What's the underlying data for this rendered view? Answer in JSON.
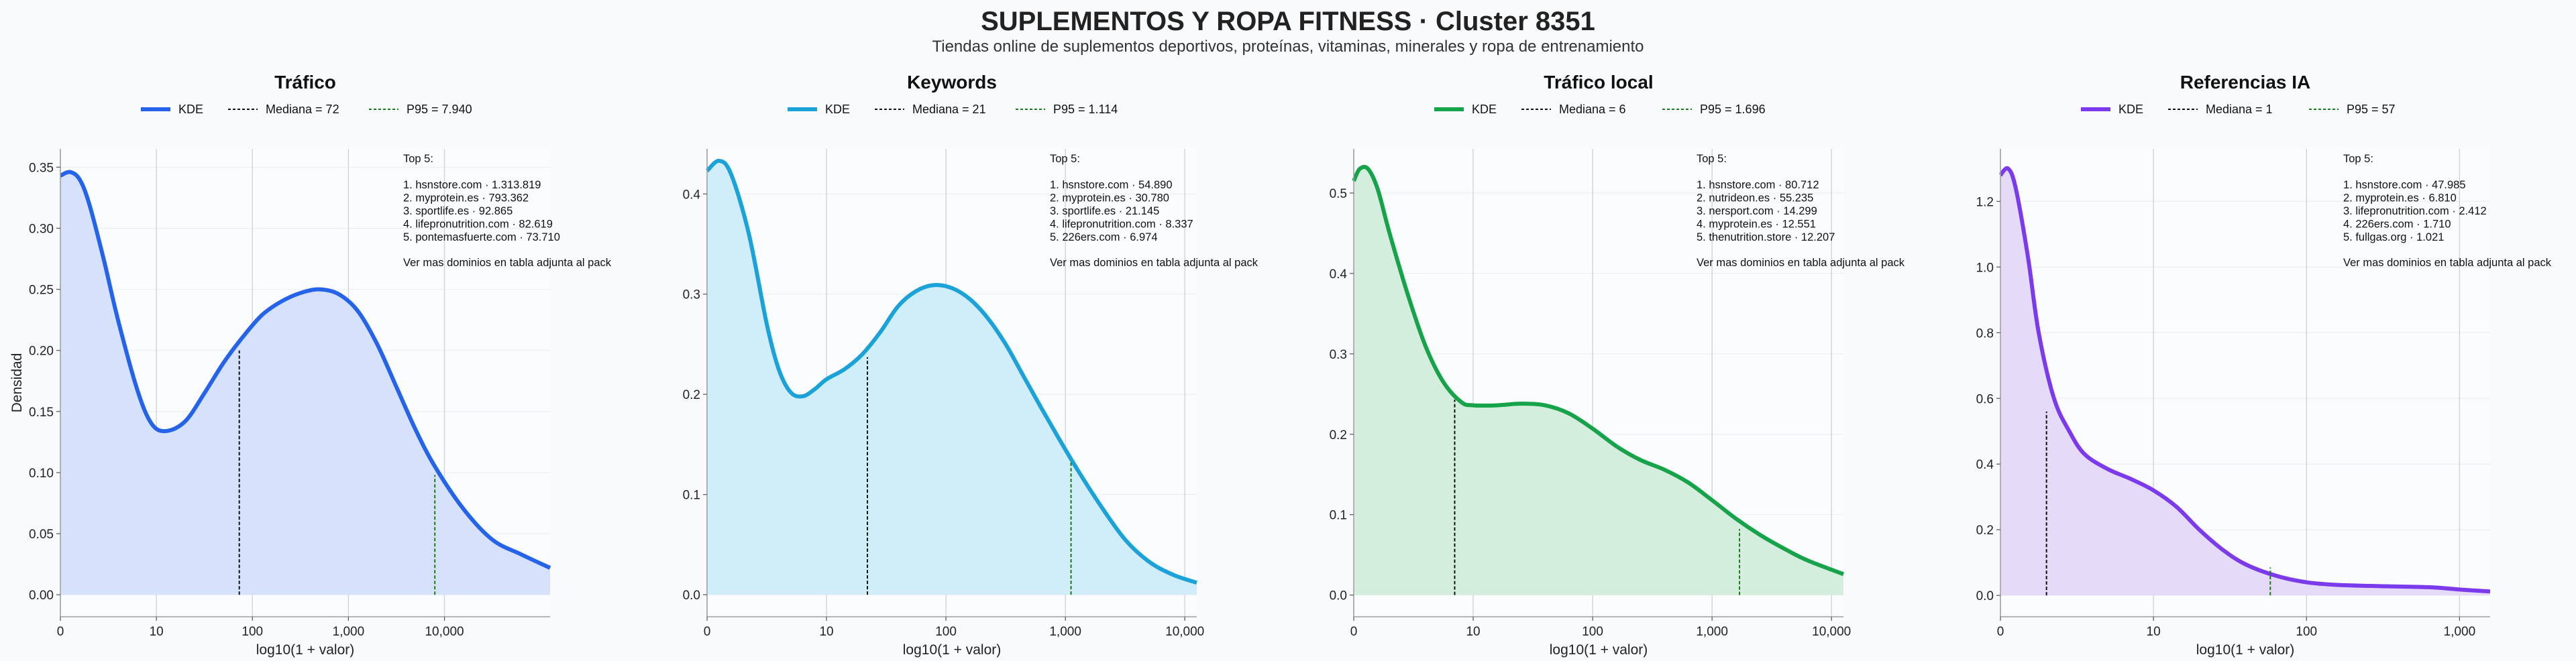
{
  "title": "SUPLEMENTOS Y ROPA FITNESS · Cluster 8351",
  "subtitle": "Tiendas online de suplementos deportivos, proteínas, vitaminas, minerales y ropa de entrenamiento",
  "chart_data": [
    {
      "type": "area",
      "title": "Tráfico",
      "color": "#2563eb",
      "fill": "#d6e2fb",
      "xlabel": "log10(1 + valor)",
      "ylabel": "Densidad",
      "x_scale": "log10(1+x)",
      "xlim_log": [
        0,
        5.1
      ],
      "ylim": [
        -0.018,
        0.365
      ],
      "yticks": [
        0,
        0.05,
        0.1,
        0.15,
        0.2,
        0.25,
        0.3,
        0.35
      ],
      "ytick_labels": [
        "0.00",
        "0.05",
        "0.10",
        "0.15",
        "0.20",
        "0.25",
        "0.30",
        "0.35"
      ],
      "xticks_log": [
        0,
        1,
        2,
        3,
        4
      ],
      "xtick_labels": [
        "0",
        "10",
        "100",
        "1,000",
        "10,000"
      ],
      "kde_x_log": [
        0,
        0.1,
        0.2,
        0.3,
        0.45,
        0.6,
        0.8,
        0.95,
        1.1,
        1.3,
        1.5,
        1.7,
        1.9,
        2.1,
        2.3,
        2.5,
        2.7,
        2.9,
        3.1,
        3.3,
        3.5,
        3.7,
        3.9,
        4.2,
        4.5,
        4.8,
        5.1
      ],
      "kde_y": [
        0.343,
        0.346,
        0.34,
        0.32,
        0.275,
        0.225,
        0.168,
        0.14,
        0.134,
        0.142,
        0.165,
        0.19,
        0.211,
        0.229,
        0.24,
        0.247,
        0.25,
        0.246,
        0.232,
        0.205,
        0.17,
        0.135,
        0.105,
        0.07,
        0.045,
        0.033,
        0.022
      ],
      "median_label": "Mediana = 72",
      "median_value": 72,
      "median_density": 0.2,
      "p95_label": "P95 = 7.940",
      "p95_value": 7940,
      "p95_density": 0.098,
      "legend": {
        "kde": "KDE"
      },
      "top_title": "Top 5:",
      "top": [
        "1. hsnstore.com · 1.313.819",
        "2. myprotein.es · 793.362",
        "3. sportlife.es · 92.865",
        "4. lifepronutrition.com · 82.619",
        "5. pontemasfuerte.com · 73.710"
      ],
      "footnote": "Ver mas dominios en tabla adjunta al pack"
    },
    {
      "type": "area",
      "title": "Keywords",
      "color": "#1ba2d8",
      "fill": "#d0eefa",
      "xlabel": "log10(1 + valor)",
      "ylabel": "",
      "x_scale": "log10(1+x)",
      "xlim_log": [
        0,
        4.1
      ],
      "ylim": [
        -0.022,
        0.445
      ],
      "yticks": [
        0,
        0.1,
        0.2,
        0.3,
        0.4
      ],
      "ytick_labels": [
        "0.0",
        "0.1",
        "0.2",
        "0.3",
        "0.4"
      ],
      "xticks_log": [
        0,
        1,
        2,
        3,
        4
      ],
      "xtick_labels": [
        "0",
        "10",
        "100",
        "1,000",
        "10,000"
      ],
      "kde_x_log": [
        0,
        0.1,
        0.2,
        0.35,
        0.5,
        0.6,
        0.7,
        0.8,
        0.9,
        1.0,
        1.15,
        1.3,
        1.45,
        1.6,
        1.75,
        1.9,
        2.05,
        2.2,
        2.35,
        2.5,
        2.65,
        2.8,
        2.95,
        3.1,
        3.3,
        3.5,
        3.7,
        3.9,
        4.1
      ],
      "kde_y": [
        0.423,
        0.433,
        0.42,
        0.36,
        0.27,
        0.225,
        0.202,
        0.198,
        0.205,
        0.215,
        0.225,
        0.24,
        0.262,
        0.288,
        0.303,
        0.309,
        0.306,
        0.295,
        0.276,
        0.25,
        0.218,
        0.186,
        0.155,
        0.125,
        0.088,
        0.055,
        0.033,
        0.02,
        0.012
      ],
      "median_label": "Mediana = 21",
      "median_value": 21,
      "median_density": 0.237,
      "p95_label": "P95 = 1.114",
      "p95_value": 1114,
      "p95_density": 0.132,
      "legend": {
        "kde": "KDE"
      },
      "top_title": "Top 5:",
      "top": [
        "1. hsnstore.com · 54.890",
        "2. myprotein.es · 30.780",
        "3. sportlife.es · 21.145",
        "4. lifepronutrition.com · 8.337",
        "5. 226ers.com · 6.974"
      ],
      "footnote": "Ver mas dominios en tabla adjunta al pack"
    },
    {
      "type": "area",
      "title": "Tráfico local",
      "color": "#16a34a",
      "fill": "#d3eedd",
      "xlabel": "log10(1 + valor)",
      "ylabel": "",
      "x_scale": "log10(1+x)",
      "xlim_log": [
        0,
        4.1
      ],
      "ylim": [
        -0.027,
        0.555
      ],
      "yticks": [
        0,
        0.1,
        0.2,
        0.3,
        0.4,
        0.5
      ],
      "ytick_labels": [
        "0.0",
        "0.1",
        "0.2",
        "0.3",
        "0.4",
        "0.5"
      ],
      "xticks_log": [
        0,
        1,
        2,
        3,
        4
      ],
      "xtick_labels": [
        "0",
        "10",
        "100",
        "1,000",
        "10,000"
      ],
      "kde_x_log": [
        0,
        0.05,
        0.12,
        0.2,
        0.3,
        0.45,
        0.6,
        0.75,
        0.9,
        1.0,
        1.2,
        1.4,
        1.6,
        1.8,
        2.0,
        2.2,
        2.4,
        2.6,
        2.8,
        3.0,
        3.2,
        3.4,
        3.6,
        3.8,
        4.1
      ],
      "kde_y": [
        0.515,
        0.53,
        0.53,
        0.505,
        0.45,
        0.375,
        0.31,
        0.265,
        0.24,
        0.236,
        0.236,
        0.238,
        0.236,
        0.226,
        0.207,
        0.185,
        0.168,
        0.156,
        0.14,
        0.118,
        0.095,
        0.075,
        0.058,
        0.043,
        0.026
      ],
      "median_label": "Mediana = 6",
      "median_value": 6,
      "median_density": 0.243,
      "p95_label": "P95 = 1.696",
      "p95_value": 1696,
      "p95_density": 0.082,
      "legend": {
        "kde": "KDE"
      },
      "top_title": "Top 5:",
      "top": [
        "1. hsnstore.com · 80.712",
        "2. nutrideon.es · 55.235",
        "3. nersport.com · 14.299",
        "4. myprotein.es · 12.551",
        "5. thenutrition.store · 12.207"
      ],
      "footnote": "Ver mas dominios en tabla adjunta al pack"
    },
    {
      "type": "area",
      "title": "Referencias IA",
      "color": "#7c3aed",
      "fill": "#e5daf8",
      "xlabel": "log10(1 + valor)",
      "ylabel": "",
      "x_scale": "log10(1+x)",
      "xlim_log": [
        0,
        3.2
      ],
      "ylim": [
        -0.065,
        1.36
      ],
      "yticks": [
        0,
        0.2,
        0.4,
        0.6,
        0.8,
        1.0,
        1.2
      ],
      "ytick_labels": [
        "0.0",
        "0.2",
        "0.4",
        "0.6",
        "0.8",
        "1.0",
        "1.2"
      ],
      "xticks_log": [
        0,
        1,
        2,
        3
      ],
      "xtick_labels": [
        "0",
        "10",
        "100",
        "1,000"
      ],
      "kde_x_log": [
        0,
        0.05,
        0.1,
        0.18,
        0.25,
        0.35,
        0.45,
        0.55,
        0.7,
        0.85,
        1.0,
        1.15,
        1.3,
        1.45,
        1.6,
        1.8,
        2.0,
        2.2,
        2.5,
        2.8,
        3.0,
        3.2
      ],
      "kde_y": [
        1.28,
        1.3,
        1.24,
        1.03,
        0.8,
        0.6,
        0.5,
        0.43,
        0.385,
        0.355,
        0.32,
        0.27,
        0.2,
        0.14,
        0.095,
        0.06,
        0.04,
        0.032,
        0.028,
        0.025,
        0.018,
        0.012
      ],
      "median_label": "Mediana = 1",
      "median_value": 1,
      "median_density": 0.56,
      "p95_label": "P95 = 57",
      "p95_value": 57,
      "p95_density": 0.085,
      "legend": {
        "kde": "KDE"
      },
      "top_title": "Top 5:",
      "top": [
        "1. hsnstore.com · 47.985",
        "2. myprotein.es · 6.810",
        "3. lifepronutrition.com · 2.412",
        "4. 226ers.com · 1.710",
        "5. fullgas.org · 1.021"
      ],
      "footnote": "Ver mas dominios en tabla adjunta al pack"
    }
  ]
}
